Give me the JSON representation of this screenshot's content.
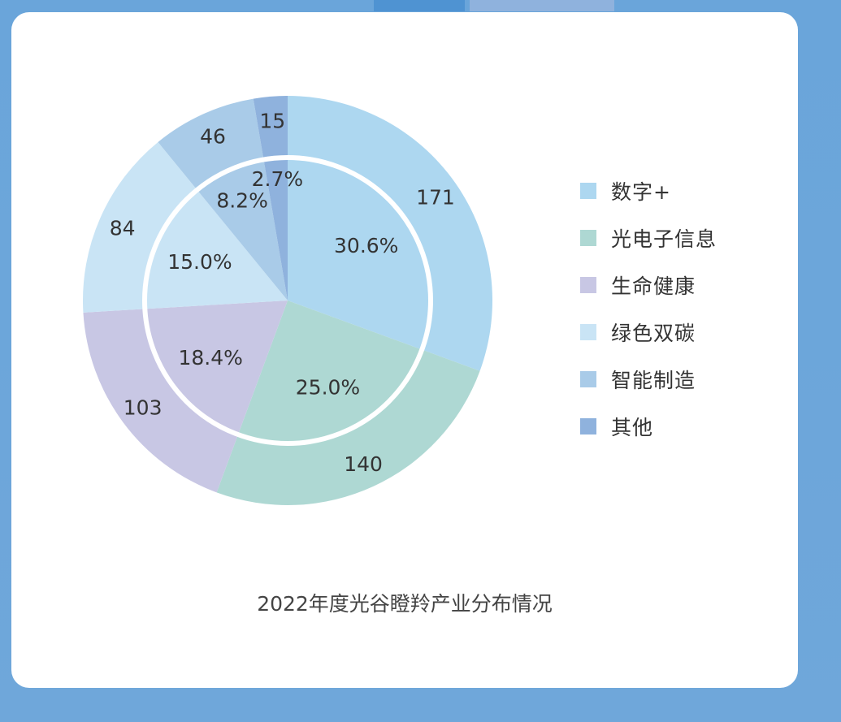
{
  "chart_data": {
    "type": "pie",
    "title": "2022年度光谷瞪羚产业分布情况",
    "categories": [
      "数字+",
      "光电子信息",
      "生命健康",
      "绿色双碳",
      "智能制造",
      "其他"
    ],
    "values": [
      171,
      140,
      103,
      84,
      46,
      15
    ],
    "percent_labels": [
      "30.6%",
      "25.0%",
      "18.4%",
      "15.0%",
      "8.2%",
      "2.7%"
    ],
    "value_labels": [
      "171",
      "140",
      "103",
      "84",
      "46",
      "15"
    ],
    "colors": [
      "#add7f0",
      "#aed8d3",
      "#c8c7e4",
      "#c9e4f5",
      "#a9cbe8",
      "#8fb2dd"
    ],
    "legend_position": "right"
  },
  "legend": {
    "items": [
      {
        "label": "数字+",
        "color": "#add7f0"
      },
      {
        "label": "光电子信息",
        "color": "#aed8d3"
      },
      {
        "label": "生命健康",
        "color": "#c8c7e4"
      },
      {
        "label": "绿色双碳",
        "color": "#c9e4f5"
      },
      {
        "label": "智能制造",
        "color": "#a9cbe8"
      },
      {
        "label": "其他",
        "color": "#8fb2dd"
      }
    ]
  },
  "page": {
    "background_color": "#6ea6d9",
    "card_color": "#ffffff"
  }
}
